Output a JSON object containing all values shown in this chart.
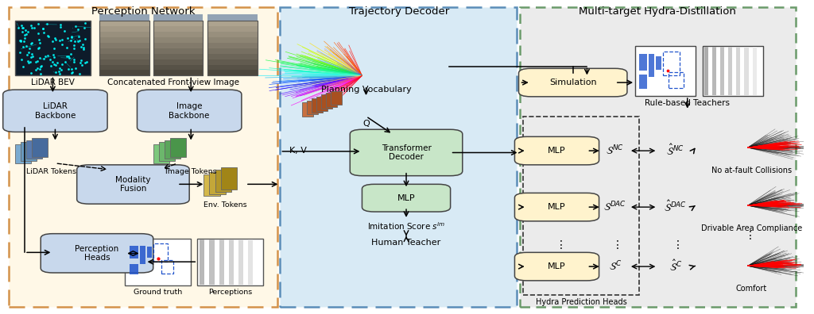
{
  "fig_width": 10.24,
  "fig_height": 3.96,
  "dpi": 100,
  "bg_color": "#ffffff",
  "section1_title": "Perception Network",
  "section2_title": "Trajectory Decoder",
  "section3_title": "Multi-target Hydra-Distillation",
  "section1_bg": "#FFF8E7",
  "section1_border": "#D4924A",
  "section2_bg": "#D8EAF5",
  "section2_border": "#5B8DB8",
  "section3_bg": "#EBEBEB",
  "section3_border": "#6A9B6A",
  "box_bg_light_blue": "#C8D8EC",
  "box_bg_light_green": "#C8E6C8",
  "box_bg_light_yellow": "#FFF3CD",
  "box_border": "#444444",
  "labels": {
    "lidar_bev": "LiDAR BEV",
    "front_view": "Concatenated Front-view Image",
    "lidar_backbone": "LiDAR\nBackbone",
    "image_backbone": "Image\nBackbone",
    "lidar_tokens": "LiDAR Tokens",
    "image_tokens": "Image Tokens",
    "modality_fusion": "Modality\nFusion",
    "env_tokens": "Env. Tokens",
    "perception_heads": "Perception\nHeads",
    "ground_truth": "Ground truth",
    "perceptions": "Perceptions",
    "planning_vocab": "Planning Vocabulary",
    "Q": "Q",
    "KV": "K, V",
    "transformer_decoder": "Transformer\nDecoder",
    "mlp": "MLP",
    "imitation_score": "Imitation Score $s^{im}$",
    "human_teacher": "Human Teacher",
    "simulation": "Simulation",
    "rule_based": "Rule-based Teachers",
    "s_nc": "$\\mathcal{S}^{NC}$",
    "s_hat_nc": "$\\hat{\\mathcal{S}}^{NC}$",
    "s_dac": "$\\mathcal{S}^{DAC}$",
    "s_hat_dac": "$\\hat{\\mathcal{S}}^{DAC}$",
    "s_c": "$\\mathcal{S}^{C}$",
    "s_hat_c": "$\\hat{\\mathcal{S}}^{C}$",
    "no_fault": "No at-fault Collisions",
    "drivable": "Drivable Area Compliance",
    "comfort": "Comfort",
    "hydra_heads": "Hydra Prediction Heads"
  }
}
